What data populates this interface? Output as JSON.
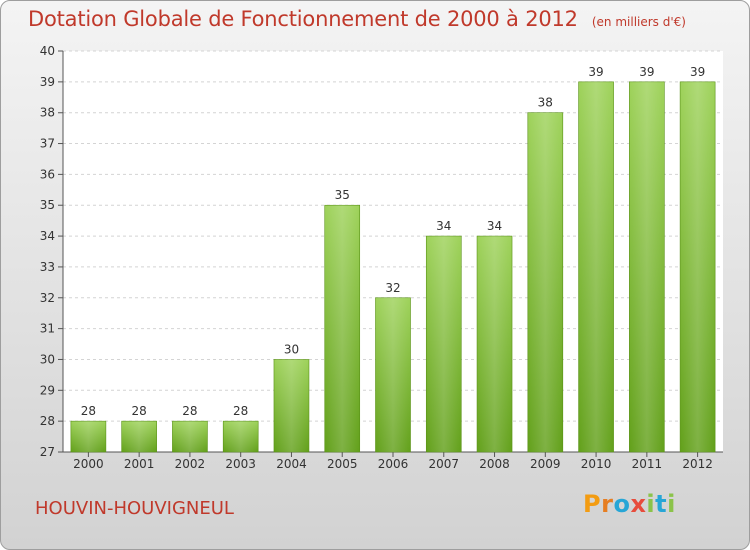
{
  "header": {
    "title": "Dotation Globale de Fonctionnement de 2000 à 2012",
    "unit": "(en milliers d'€)"
  },
  "footer": {
    "commune": "HOUVIN-HOUVIGNEUL",
    "logo": "Proxiti"
  },
  "colors": {
    "title": "#c0392b",
    "bar_light": "#9ed25a",
    "bar_dark": "#62a01a"
  },
  "chart_data": {
    "type": "bar",
    "title": "Dotation Globale de Fonctionnement de 2000 à 2012",
    "subtitle": "(en milliers d'€)",
    "categories": [
      "2000",
      "2001",
      "2002",
      "2003",
      "2004",
      "2005",
      "2006",
      "2007",
      "2008",
      "2009",
      "2010",
      "2011",
      "2012"
    ],
    "values": [
      28,
      28,
      28,
      28,
      30,
      35,
      32,
      34,
      34,
      38,
      39,
      39,
      39
    ],
    "ylim": [
      27,
      40
    ],
    "yticks": [
      27,
      28,
      29,
      30,
      31,
      32,
      33,
      34,
      35,
      36,
      37,
      38,
      39,
      40
    ],
    "grid": true
  }
}
